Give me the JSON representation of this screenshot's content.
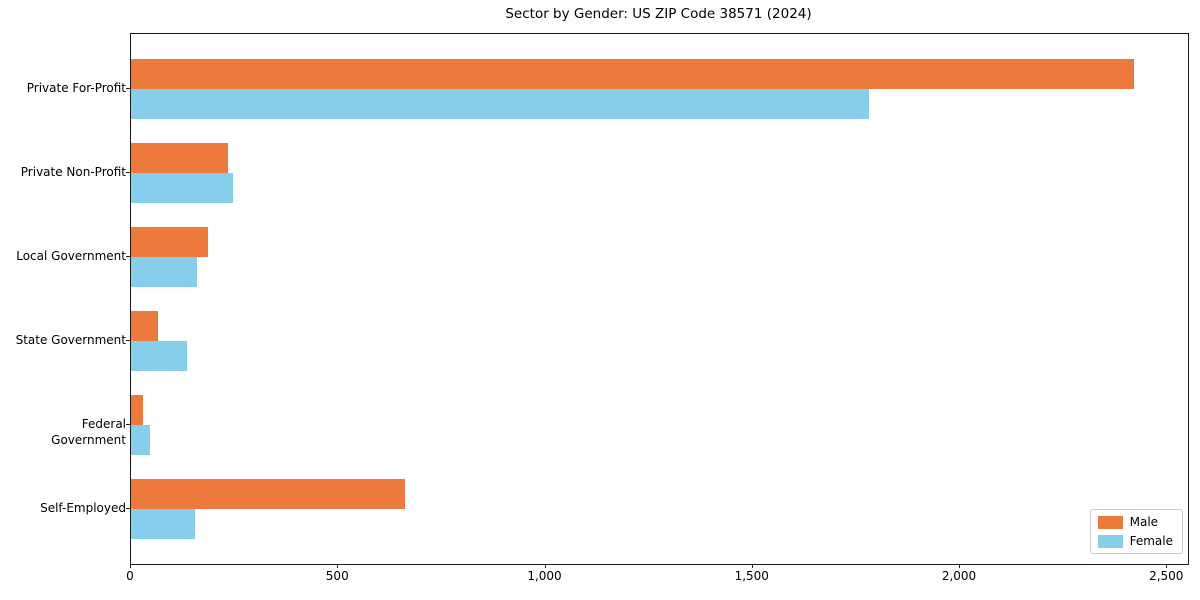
{
  "chart_data": {
    "type": "bar",
    "orientation": "horizontal",
    "title": "Sector by Gender: US ZIP Code 38571 (2024)",
    "categories": [
      "Private For-Profit",
      "Private Non-Profit",
      "Local Government",
      "State Government",
      "Federal Government",
      "Self-Employed"
    ],
    "series": [
      {
        "name": "Male",
        "color": "#ec7a3d",
        "values": [
          2420,
          235,
          185,
          65,
          30,
          660
        ]
      },
      {
        "name": "Female",
        "color": "#87ceeb",
        "values": [
          1780,
          245,
          160,
          135,
          45,
          155
        ]
      }
    ],
    "xlabel": "",
    "ylabel": "",
    "xlim": [
      0,
      2550
    ],
    "x_ticks": [
      {
        "value": 0,
        "label": "0"
      },
      {
        "value": 500,
        "label": "500"
      },
      {
        "value": 1000,
        "label": "1,000"
      },
      {
        "value": 1500,
        "label": "1,500"
      },
      {
        "value": 2000,
        "label": "2,000"
      },
      {
        "value": 2500,
        "label": "2,500"
      }
    ],
    "grid": "off",
    "legend_position": "lower right",
    "spine_color": "#1a1a1a",
    "background_color": "#ffffff"
  }
}
